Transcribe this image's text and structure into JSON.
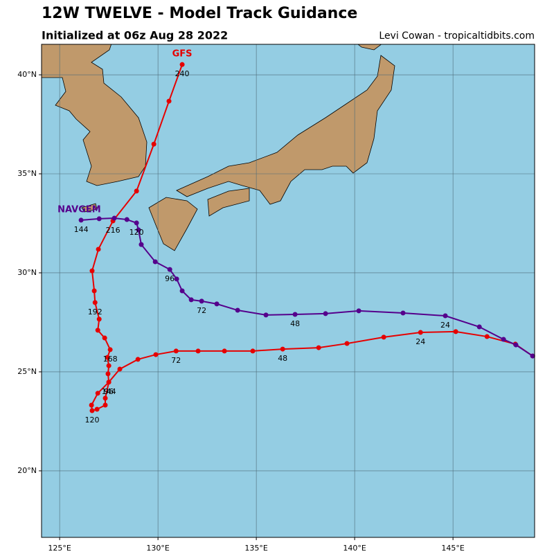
{
  "chart_data": {
    "type": "track",
    "title": "12W TWELVE - Model Track Guidance",
    "subtitle": "Initialized at 06z Aug 28 2022",
    "credit": "Levi Cowan - tropicaltidbits.com",
    "xlim": [
      124.08,
      149.15
    ],
    "ylim": [
      16.64,
      41.54
    ],
    "xticks": [
      {
        "value": 125,
        "label": "125°E"
      },
      {
        "value": 130,
        "label": "130°E"
      },
      {
        "value": 135,
        "label": "135°E"
      },
      {
        "value": 140,
        "label": "140°E"
      },
      {
        "value": 145,
        "label": "145°E"
      }
    ],
    "yticks": [
      {
        "value": 20,
        "label": "20°N"
      },
      {
        "value": 25,
        "label": "25°N"
      },
      {
        "value": 30,
        "label": "30°N"
      },
      {
        "value": 35,
        "label": "35°N"
      },
      {
        "value": 40,
        "label": "40°N"
      }
    ],
    "grid": true,
    "series": [
      {
        "name": "GFS",
        "color": "#e60000",
        "x": [
          149.05,
          148.17,
          146.73,
          145.14,
          143.35,
          141.48,
          139.61,
          138.17,
          136.34,
          134.82,
          133.38,
          132.04,
          130.92,
          129.89,
          128.98,
          128.06,
          127.5,
          126.94,
          126.62,
          126.65,
          126.9,
          127.32,
          127.32,
          127.5,
          127.46,
          127.5,
          127.43,
          127.57,
          127.29,
          126.94,
          127.01,
          126.8,
          126.76,
          126.65,
          126.97,
          127.71,
          128.91,
          129.79,
          130.56,
          131.23
        ],
        "values": [
          25.8,
          26.4,
          26.78,
          27.03,
          26.99,
          26.75,
          26.43,
          26.22,
          26.15,
          26.05,
          26.05,
          26.05,
          26.05,
          25.87,
          25.63,
          25.14,
          24.48,
          23.92,
          23.32,
          23.04,
          23.11,
          23.32,
          23.67,
          24.48,
          24.9,
          25.31,
          25.73,
          26.12,
          26.71,
          27.1,
          27.66,
          28.5,
          29.09,
          30.1,
          31.19,
          32.62,
          34.13,
          36.5,
          38.67,
          40.52
        ],
        "hour_labels": [
          null,
          null,
          null,
          null,
          24,
          null,
          null,
          null,
          48,
          null,
          null,
          null,
          72,
          null,
          null,
          null,
          96,
          null,
          null,
          120,
          null,
          null,
          null,
          144,
          null,
          null,
          null,
          168,
          null,
          null,
          null,
          192,
          null,
          null,
          null,
          216,
          null,
          null,
          null,
          240
        ]
      },
      {
        "name": "NAVGEM",
        "color": "#55008c",
        "x": [
          149.05,
          148.2,
          147.57,
          146.34,
          144.61,
          142.46,
          140.21,
          138.52,
          136.97,
          135.49,
          134.05,
          132.99,
          132.22,
          131.69,
          131.23,
          130.95,
          130.6,
          129.86,
          129.15,
          129.01,
          128.91,
          128.42,
          127.78,
          127.01,
          126.09
        ],
        "values": [
          25.8,
          26.36,
          26.64,
          27.27,
          27.83,
          27.97,
          28.08,
          27.94,
          27.9,
          27.87,
          28.11,
          28.43,
          28.57,
          28.64,
          29.09,
          29.69,
          30.17,
          30.56,
          31.43,
          32.17,
          32.52,
          32.69,
          32.76,
          32.73,
          32.66
        ],
        "hour_labels": [
          null,
          null,
          null,
          null,
          24,
          null,
          null,
          null,
          48,
          null,
          null,
          null,
          72,
          null,
          null,
          null,
          96,
          null,
          null,
          null,
          120,
          null,
          null,
          null,
          144
        ]
      }
    ]
  }
}
